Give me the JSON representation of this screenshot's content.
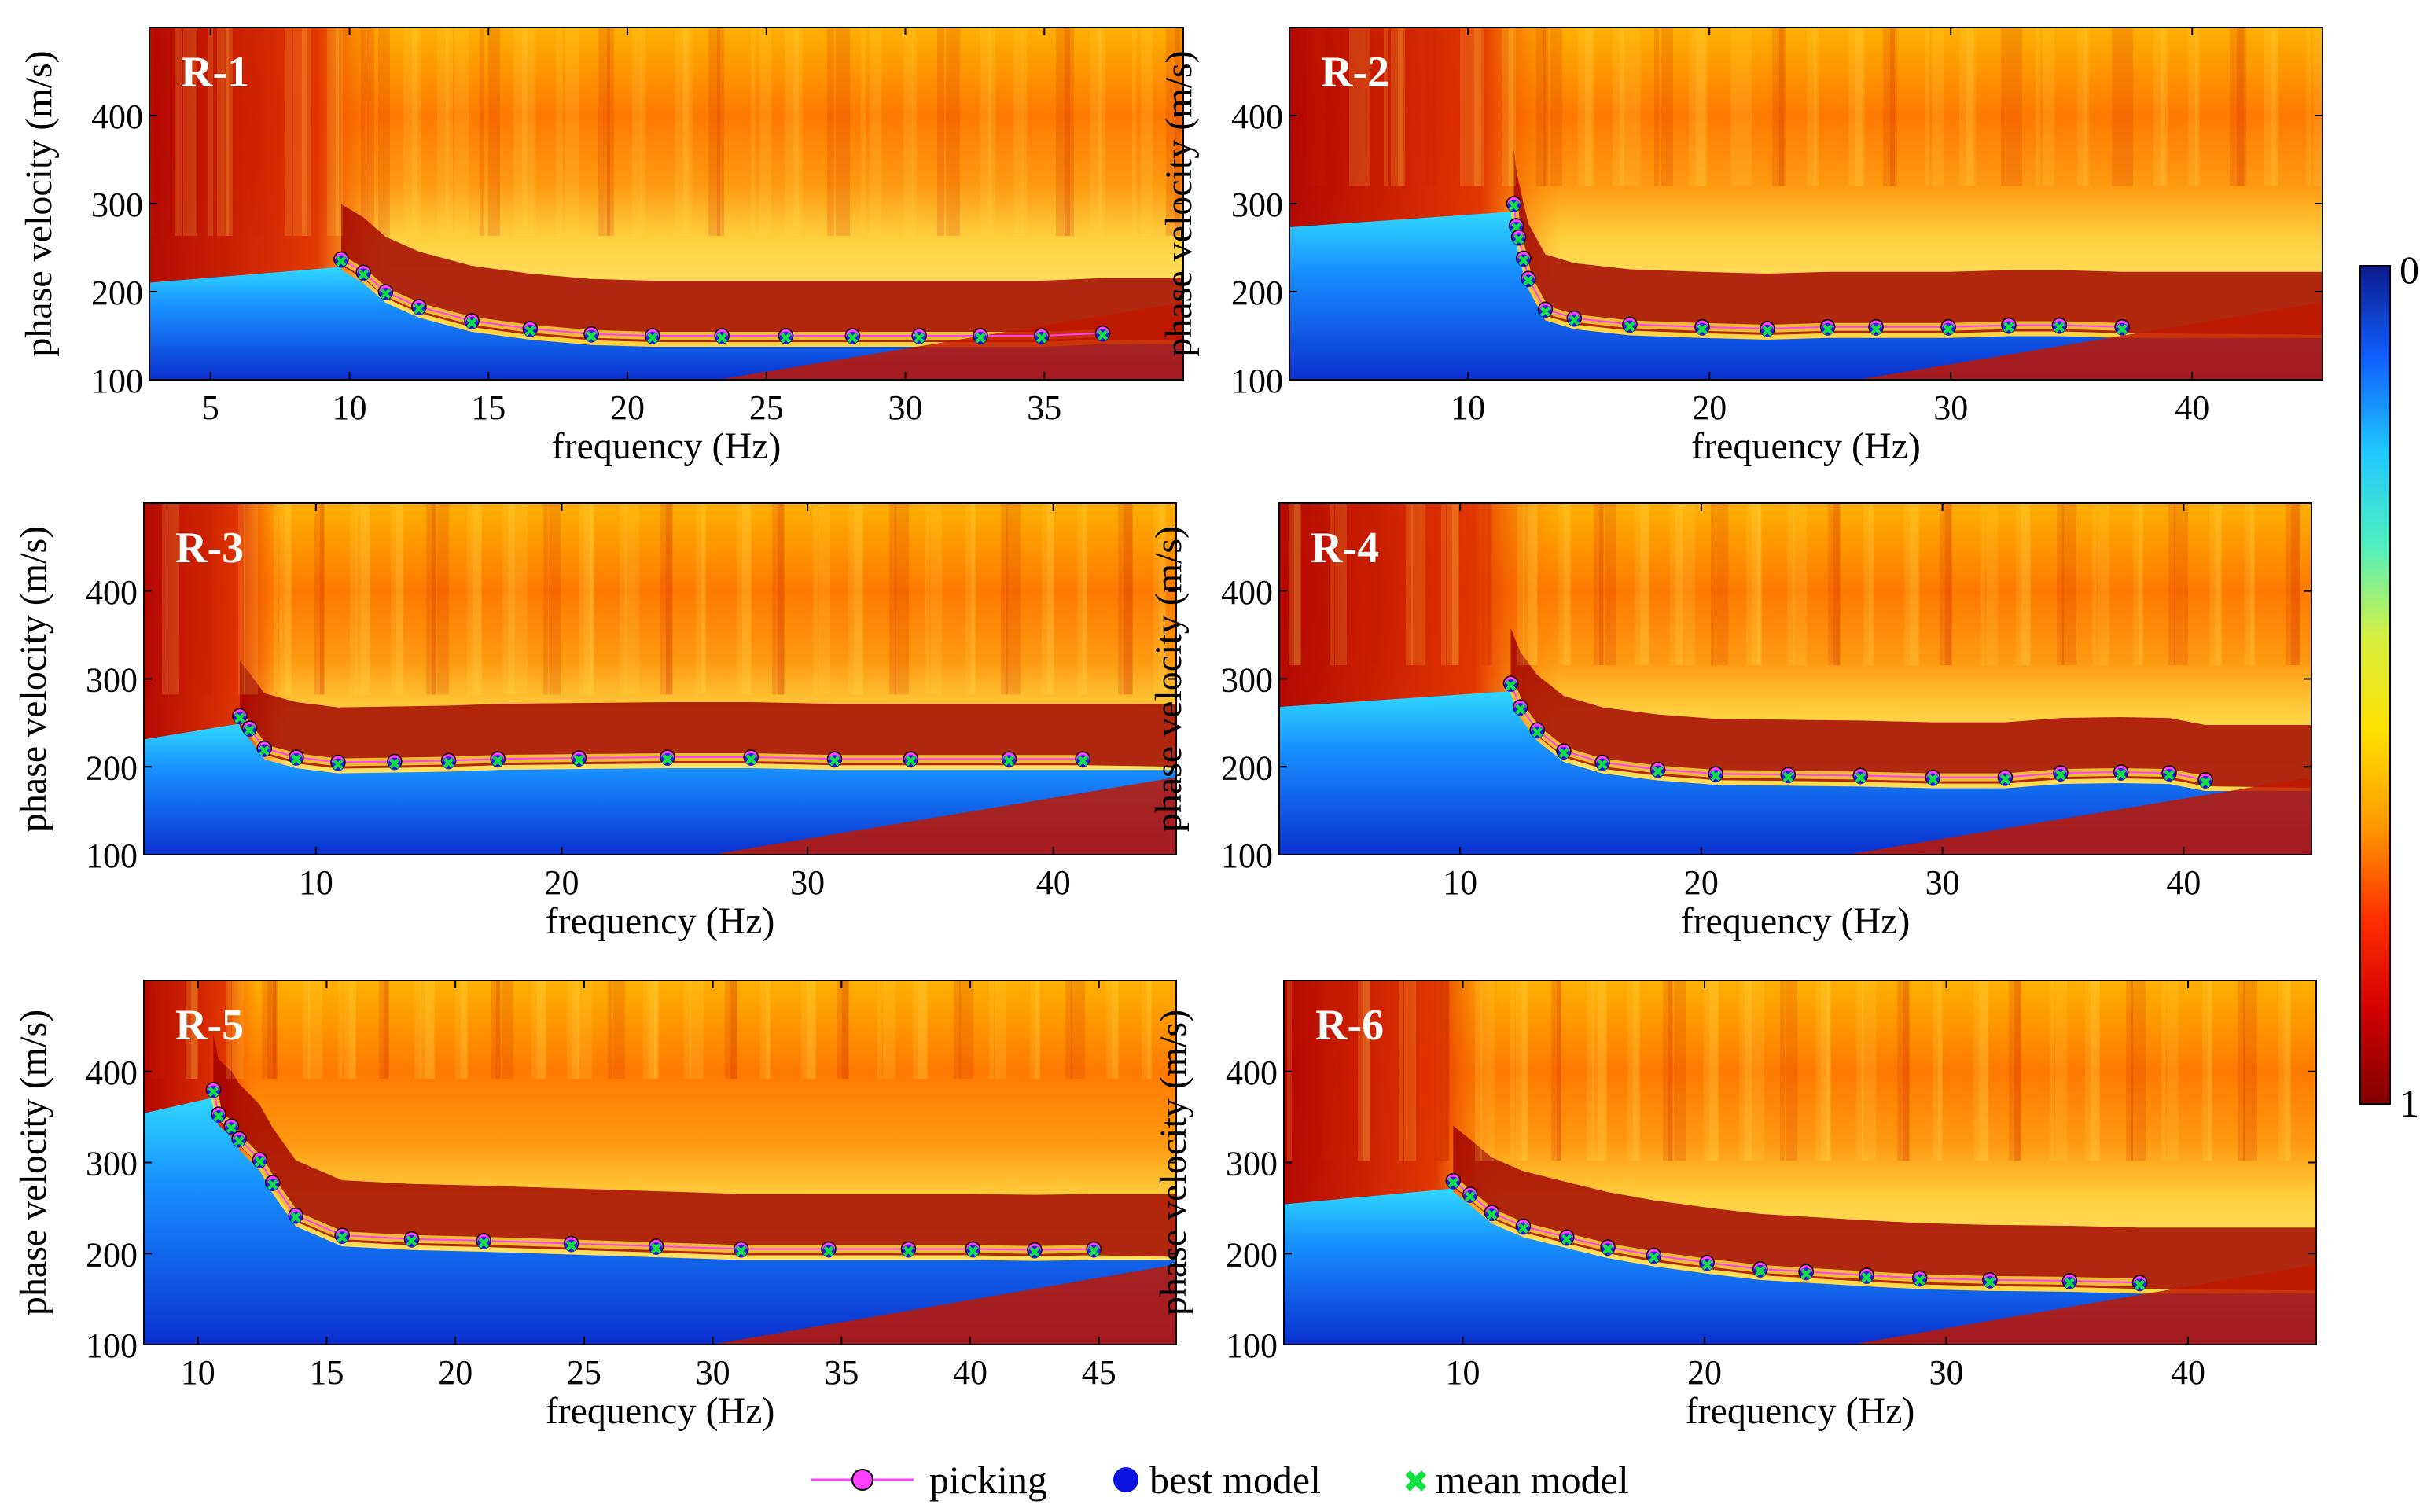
{
  "figure": {
    "xlabel": "frequency (Hz)",
    "ylabel": "phase velocity (m/s)"
  },
  "colorbar": {
    "top_label": "0",
    "bottom_label": "1",
    "stops": [
      "#0a1a8c",
      "#1060ff",
      "#20c8ff",
      "#4ff0c0",
      "#d8f040",
      "#ffe000",
      "#ff9a00",
      "#ff3000",
      "#d00000",
      "#800000"
    ]
  },
  "legend": {
    "picking_label": "picking",
    "best_label": "best model",
    "mean_label": "mean model",
    "picking_color": "#ff40ff",
    "best_color": "#0a14e0",
    "mean_color": "#10e040"
  },
  "chart_data": [
    {
      "type": "scatter",
      "label": "R-1",
      "xlim": [
        2.8,
        40
      ],
      "ylim": [
        100,
        500
      ],
      "xticks": [
        5,
        10,
        15,
        20,
        25,
        30,
        35
      ],
      "yticks": [
        100,
        200,
        300,
        400
      ],
      "dispersion_curve": {
        "x": [
          9.7,
          10.5,
          11.3,
          12.5,
          14.4,
          16.5,
          18.7,
          20.9,
          23.4,
          25.7,
          28.1,
          30.5,
          32.7,
          34.9,
          37.1
        ],
        "y": [
          237,
          222,
          200,
          183,
          167,
          158,
          152,
          150,
          150,
          150,
          150,
          150,
          150,
          150,
          153
        ]
      }
    },
    {
      "type": "scatter",
      "label": "R-2",
      "xlim": [
        2.6,
        45.4
      ],
      "ylim": [
        100,
        500
      ],
      "xticks": [
        10,
        20,
        30,
        40
      ],
      "yticks": [
        100,
        200,
        300,
        400
      ],
      "dispersion_curve": {
        "x": [
          11.9,
          12.0,
          12.1,
          12.3,
          12.5,
          13.2,
          14.4,
          16.7,
          19.7,
          22.4,
          24.9,
          26.9,
          29.9,
          32.4,
          34.5,
          37.1
        ],
        "y": [
          300,
          275,
          262,
          238,
          215,
          180,
          170,
          163,
          160,
          158,
          160,
          160,
          160,
          162,
          162,
          160
        ]
      }
    },
    {
      "type": "scatter",
      "label": "R-3",
      "xlim": [
        3,
        45
      ],
      "ylim": [
        100,
        500
      ],
      "xticks": [
        10,
        20,
        30,
        40
      ],
      "yticks": [
        100,
        200,
        300,
        400
      ],
      "dispersion_curve": {
        "x": [
          6.9,
          7.3,
          7.9,
          9.2,
          10.9,
          13.2,
          15.4,
          17.4,
          20.7,
          24.3,
          27.7,
          31.1,
          34.2,
          38.2,
          41.2
        ],
        "y": [
          258,
          244,
          221,
          211,
          205,
          206,
          207,
          209,
          210,
          211,
          211,
          209,
          209,
          209,
          209
        ]
      }
    },
    {
      "type": "scatter",
      "label": "R-4",
      "xlim": [
        2.5,
        45.3
      ],
      "ylim": [
        100,
        500
      ],
      "xticks": [
        10,
        20,
        30,
        40
      ],
      "yticks": [
        100,
        200,
        300,
        400
      ],
      "dispersion_curve": {
        "x": [
          12.1,
          12.5,
          13.2,
          14.3,
          15.9,
          18.2,
          20.6,
          23.6,
          26.6,
          29.6,
          32.6,
          34.9,
          37.4,
          39.4,
          40.9
        ],
        "y": [
          295,
          268,
          242,
          218,
          205,
          197,
          192,
          191,
          190,
          188,
          188,
          193,
          194,
          193,
          185
        ]
      }
    },
    {
      "type": "scatter",
      "label": "R-5",
      "xlim": [
        7.9,
        48
      ],
      "ylim": [
        100,
        500
      ],
      "xticks": [
        10,
        15,
        20,
        25,
        30,
        35,
        40,
        45
      ],
      "yticks": [
        100,
        200,
        300,
        400
      ],
      "dispersion_curve": {
        "x": [
          10.6,
          10.8,
          11.3,
          11.6,
          12.4,
          12.9,
          13.8,
          15.6,
          18.3,
          21.1,
          24.5,
          27.8,
          31.1,
          34.5,
          37.6,
          40.1,
          42.5,
          44.8
        ],
        "y": [
          380,
          353,
          340,
          326,
          303,
          278,
          242,
          220,
          216,
          214,
          211,
          208,
          205,
          205,
          205,
          205,
          204,
          205
        ]
      }
    },
    {
      "type": "scatter",
      "label": "R-6",
      "xlim": [
        2.6,
        45.3
      ],
      "ylim": [
        100,
        500
      ],
      "xticks": [
        10,
        20,
        30,
        40
      ],
      "yticks": [
        100,
        200,
        300,
        400
      ],
      "dispersion_curve": {
        "x": [
          9.6,
          10.3,
          11.2,
          12.5,
          14.3,
          16.0,
          17.9,
          20.1,
          22.3,
          24.2,
          26.7,
          28.9,
          31.8,
          35.1,
          38.0
        ],
        "y": [
          280,
          265,
          245,
          230,
          218,
          207,
          198,
          190,
          183,
          180,
          176,
          173,
          171,
          170,
          168
        ]
      }
    }
  ]
}
